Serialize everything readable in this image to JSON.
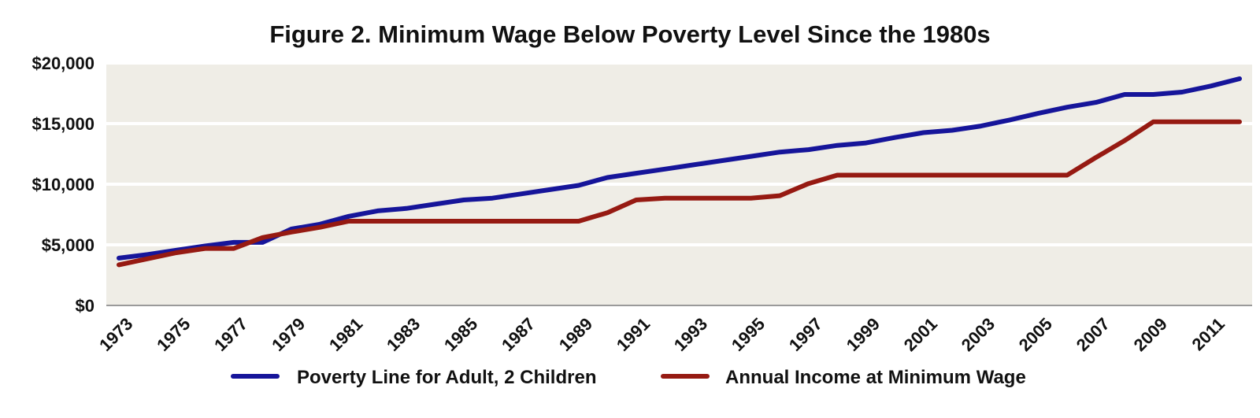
{
  "colors": {
    "plot_background": "#efede6",
    "grid": "#ffffff",
    "axis": "#9a9a9a",
    "poverty": "#16159a",
    "minwage": "#961a12"
  },
  "chart_data": {
    "type": "line",
    "title": "Figure 2. Minimum Wage Below Poverty Level Since the 1980s",
    "xlabel": "",
    "ylabel": "",
    "ylim": [
      0,
      20000
    ],
    "xlim": [
      1973,
      2012
    ],
    "y_ticks": [
      {
        "value": 0,
        "label": "$0"
      },
      {
        "value": 5000,
        "label": "$5,000"
      },
      {
        "value": 10000,
        "label": "$10,000"
      },
      {
        "value": 15000,
        "label": "$15,000"
      },
      {
        "value": 20000,
        "label": "$20,000"
      }
    ],
    "x_ticks": [
      1973,
      1975,
      1977,
      1979,
      1981,
      1983,
      1985,
      1987,
      1989,
      1991,
      1993,
      1995,
      1997,
      1999,
      2001,
      2003,
      2005,
      2007,
      2009,
      2011
    ],
    "x_tick_labels": [
      "1973",
      "1975",
      "1977",
      "1979",
      "1981",
      "1983",
      "1985",
      "1987",
      "1989",
      "1991",
      "1993",
      "1995",
      "1997",
      "1999",
      "2001",
      "2003",
      "2005",
      "2007",
      "2009",
      "2011"
    ],
    "grid": true,
    "legend": "bottom",
    "x": [
      1973,
      1974,
      1975,
      1976,
      1977,
      1978,
      1979,
      1980,
      1981,
      1982,
      1983,
      1984,
      1985,
      1986,
      1987,
      1988,
      1989,
      1990,
      1991,
      1992,
      1993,
      1994,
      1995,
      1996,
      1997,
      1998,
      1999,
      2000,
      2001,
      2002,
      2003,
      2004,
      2005,
      2006,
      2007,
      2008,
      2009,
      2010,
      2011,
      2012
    ],
    "series": [
      {
        "name": "Poverty Line for Adult, 2 Children",
        "color_key": "poverty",
        "values": [
          3900,
          4200,
          4550,
          4900,
          5200,
          5200,
          6300,
          6700,
          7350,
          7800,
          8000,
          8350,
          8700,
          8850,
          9200,
          9550,
          9900,
          10550,
          10900,
          11250,
          11600,
          11950,
          12300,
          12650,
          12850,
          13200,
          13400,
          13850,
          14250,
          14450,
          14800,
          15300,
          15850,
          16350,
          16750,
          17400,
          17400,
          17600,
          18100,
          18700
        ]
      },
      {
        "name": "Annual Income at Minimum Wage",
        "color_key": "minwage",
        "values": [
          3350,
          3850,
          4350,
          4700,
          4700,
          5600,
          6050,
          6450,
          6950,
          6950,
          6950,
          6950,
          6950,
          6950,
          6950,
          6950,
          6950,
          7650,
          8700,
          8850,
          8850,
          8850,
          8850,
          9050,
          10050,
          10750,
          10750,
          10750,
          10750,
          10750,
          10750,
          10750,
          10750,
          10750,
          12200,
          13600,
          15150,
          15150,
          15150,
          15150
        ]
      }
    ]
  }
}
